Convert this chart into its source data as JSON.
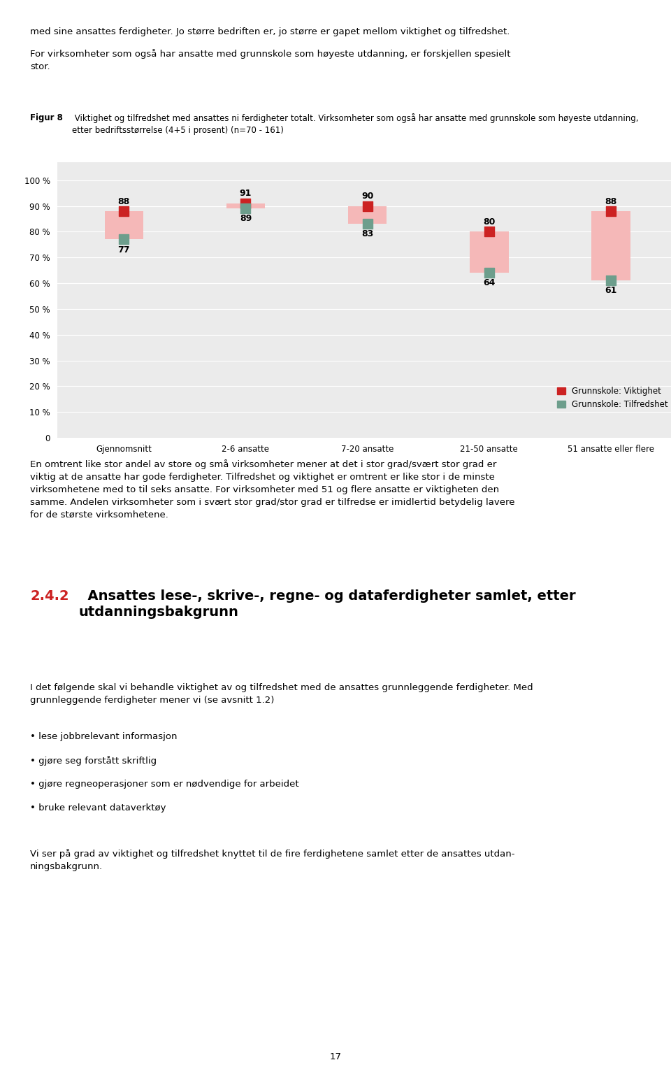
{
  "page_width": 9.6,
  "page_height": 15.46,
  "dpi": 100,
  "fig_bg_color": "#FFFFFF",
  "plot_bg_color": "#EBEBEB",
  "bar_color": "#F5B8B8",
  "dot_viktighet_color": "#CC2222",
  "dot_tilfredshet_color": "#6D9E8C",
  "categories": [
    "Gjennomsnitt",
    "2-6 ansatte",
    "7-20 ansatte",
    "21-50 ansatte",
    "51 ansatte eller flere"
  ],
  "viktighet": [
    88,
    91,
    90,
    80,
    88
  ],
  "tilfredshet": [
    77,
    89,
    83,
    64,
    61
  ],
  "y_ticks": [
    0,
    10,
    20,
    30,
    40,
    50,
    60,
    70,
    80,
    90,
    100
  ],
  "y_labels": [
    "0",
    "10 %",
    "20 %",
    "30 %",
    "40 %",
    "50 %",
    "60 %",
    "70 %",
    "80 %",
    "90 %",
    "100 %"
  ],
  "legend_viktighet": "Grunnskole: Viktighet",
  "legend_tilfredshet": "Grunnskole: Tilfredshet",
  "bar_width": 0.32,
  "text_above_1": "med sine ansattes ferdigheter. Jo større bedriften er, jo større er gapet mellom viktighet og tilfredshet.",
  "text_above_2": "For virksomheter som også har ansatte med grunnskole som høyeste utdanning, er forskjellen spesielt\nstor.",
  "figur_bold": "Figur 8",
  "figur_normal": " Viktighet og tilfredshet med ansattes ni ferdigheter totalt. Virksomheter som også har ansatte med grunnskole som høyeste utdanning,\netter bedriftsstørrelse (4+5 i prosent) (n=70 - 161)",
  "text_below_1": "En omtrent like stor andel av store og små virksomheter mener at det i stor grad/svært stor grad er\nviktig at de ansatte har gode ferdigheter. Tilfredshet og viktighet er omtrent er like stor i de minste\nvirksomhetene med to til seks ansatte. For virksomheter med 51 og flere ansatte er viktigheten den\nsamme. Andelen virksomheter som i svært stor grad/stor grad er tilfredse er imidlertid betydelig lavere\nfor de største virksomhetene.",
  "section_num": "2.4.2",
  "section_title": "  Ansattes lese-, skrive-, regne- og dataferdigheter samlet, etter\nutdanningsbakgrunn",
  "text_below_2": "I det følgende skal vi behandle viktighet av og tilfredshet med de ansattes grunnleggende ferdigheter. Med\ngrunnleggende ferdigheter mener vi (se avsnitt 1.2)",
  "bullets": [
    "lese jobbrelevant informasjon",
    "gjøre seg forstått skriftlig",
    "gjøre regneoperasjoner som er nødvendige for arbeidet",
    "bruke relevant dataverktøy"
  ],
  "text_below_3": "Vi ser på grad av viktighet og tilfredshet knyttet til de fire ferdighetene samlet etter de ansattes utdan-\nningsbakgrunn.",
  "page_number": "17"
}
